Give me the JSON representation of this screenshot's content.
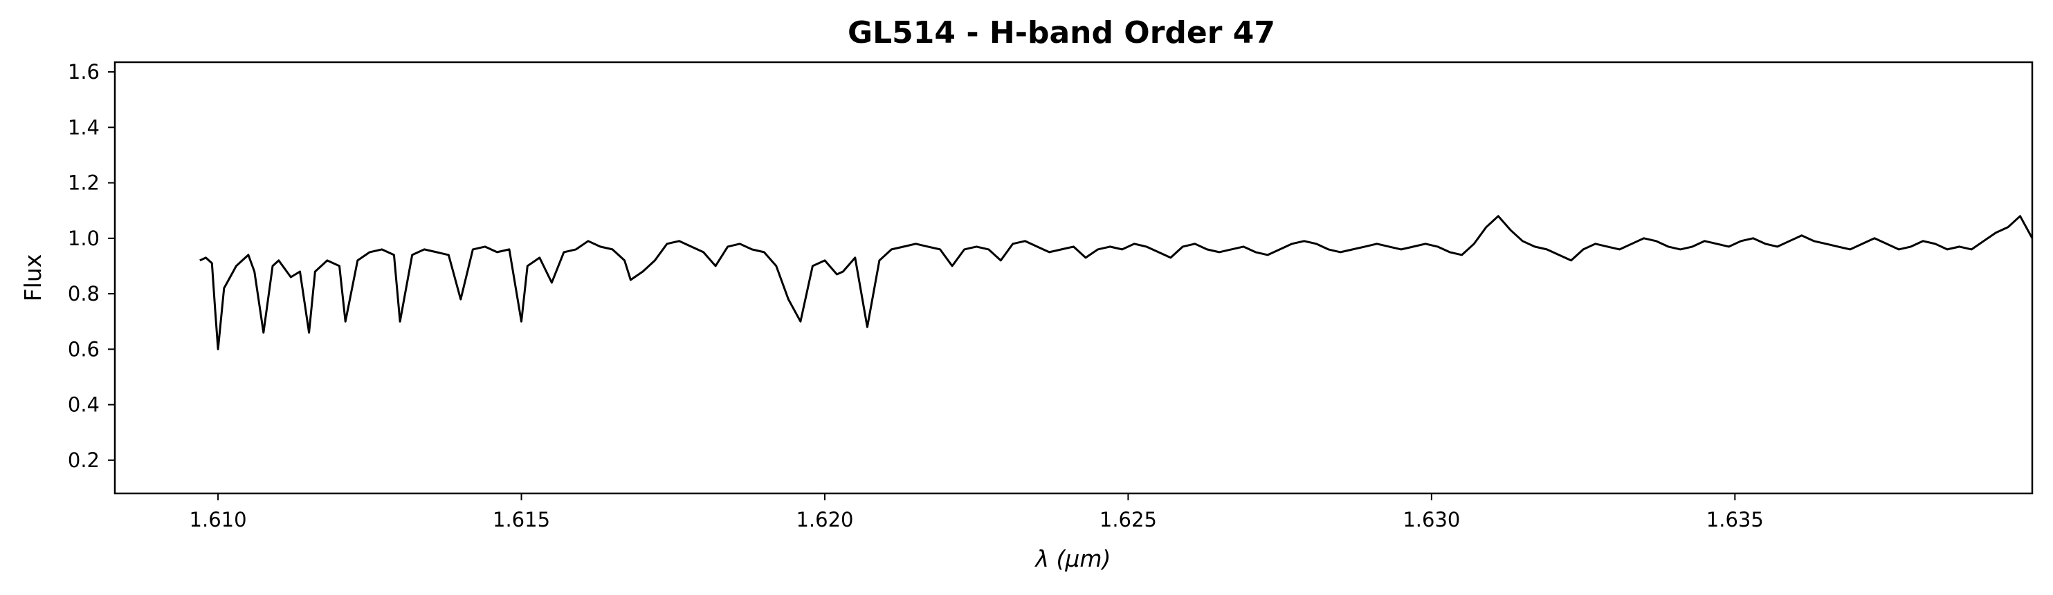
{
  "chart_data": {
    "type": "line",
    "title": "GL514 - H-band Order 47",
    "xlabel": "λ (μm)",
    "ylabel": "Flux",
    "xlim": [
      1.6083,
      1.6399
    ],
    "ylim": [
      0.08,
      1.635
    ],
    "xticks": [
      "1.610",
      "1.615",
      "1.620",
      "1.625",
      "1.630",
      "1.635",
      "1.640"
    ],
    "yticks": [
      "0.2",
      "0.4",
      "0.6",
      "0.8",
      "1.0",
      "1.2",
      "1.4",
      "1.6"
    ],
    "grid": false,
    "legend": "none",
    "series": [
      {
        "color": "#000000",
        "points": [
          [
            1.6097,
            0.92
          ],
          [
            1.6098,
            0.93
          ],
          [
            1.6099,
            0.91
          ],
          [
            1.60995,
            0.75
          ],
          [
            1.61,
            0.6
          ],
          [
            1.6101,
            0.82
          ],
          [
            1.6102,
            0.86
          ],
          [
            1.6103,
            0.9
          ],
          [
            1.6104,
            0.92
          ],
          [
            1.6105,
            0.94
          ],
          [
            1.6106,
            0.88
          ],
          [
            1.61075,
            0.66
          ],
          [
            1.6109,
            0.9
          ],
          [
            1.611,
            0.92
          ],
          [
            1.6112,
            0.86
          ],
          [
            1.61135,
            0.88
          ],
          [
            1.6115,
            0.66
          ],
          [
            1.6116,
            0.88
          ],
          [
            1.6118,
            0.92
          ],
          [
            1.612,
            0.9
          ],
          [
            1.6121,
            0.7
          ],
          [
            1.6123,
            0.92
          ],
          [
            1.6125,
            0.95
          ],
          [
            1.6127,
            0.96
          ],
          [
            1.6129,
            0.94
          ],
          [
            1.613,
            0.7
          ],
          [
            1.6132,
            0.94
          ],
          [
            1.6134,
            0.96
          ],
          [
            1.6136,
            0.95
          ],
          [
            1.6138,
            0.94
          ],
          [
            1.614,
            0.78
          ],
          [
            1.6142,
            0.96
          ],
          [
            1.6144,
            0.97
          ],
          [
            1.6146,
            0.95
          ],
          [
            1.6148,
            0.96
          ],
          [
            1.615,
            0.7
          ],
          [
            1.6151,
            0.9
          ],
          [
            1.6153,
            0.93
          ],
          [
            1.6155,
            0.84
          ],
          [
            1.6157,
            0.95
          ],
          [
            1.6159,
            0.96
          ],
          [
            1.6161,
            0.99
          ],
          [
            1.6163,
            0.97
          ],
          [
            1.6165,
            0.96
          ],
          [
            1.6167,
            0.92
          ],
          [
            1.6168,
            0.85
          ],
          [
            1.617,
            0.88
          ],
          [
            1.6172,
            0.92
          ],
          [
            1.6174,
            0.98
          ],
          [
            1.6176,
            0.99
          ],
          [
            1.6178,
            0.97
          ],
          [
            1.618,
            0.95
          ],
          [
            1.6182,
            0.9
          ],
          [
            1.6184,
            0.97
          ],
          [
            1.6186,
            0.98
          ],
          [
            1.6188,
            0.96
          ],
          [
            1.619,
            0.95
          ],
          [
            1.6192,
            0.9
          ],
          [
            1.6194,
            0.78
          ],
          [
            1.6196,
            0.7
          ],
          [
            1.6198,
            0.9
          ],
          [
            1.62,
            0.92
          ],
          [
            1.6202,
            0.87
          ],
          [
            1.6203,
            0.88
          ],
          [
            1.6205,
            0.93
          ],
          [
            1.6207,
            0.68
          ],
          [
            1.6209,
            0.92
          ],
          [
            1.6211,
            0.96
          ],
          [
            1.6213,
            0.97
          ],
          [
            1.6215,
            0.98
          ],
          [
            1.6217,
            0.97
          ],
          [
            1.6219,
            0.96
          ],
          [
            1.6221,
            0.9
          ],
          [
            1.6223,
            0.96
          ],
          [
            1.6225,
            0.97
          ],
          [
            1.6227,
            0.96
          ],
          [
            1.6229,
            0.92
          ],
          [
            1.6231,
            0.98
          ],
          [
            1.6233,
            0.99
          ],
          [
            1.6235,
            0.97
          ],
          [
            1.6237,
            0.95
          ],
          [
            1.6239,
            0.96
          ],
          [
            1.6241,
            0.97
          ],
          [
            1.6243,
            0.93
          ],
          [
            1.6245,
            0.96
          ],
          [
            1.6247,
            0.97
          ],
          [
            1.6249,
            0.96
          ],
          [
            1.6251,
            0.98
          ],
          [
            1.6253,
            0.97
          ],
          [
            1.6255,
            0.95
          ],
          [
            1.6257,
            0.93
          ],
          [
            1.6259,
            0.97
          ],
          [
            1.6261,
            0.98
          ],
          [
            1.6263,
            0.96
          ],
          [
            1.6265,
            0.95
          ],
          [
            1.6267,
            0.96
          ],
          [
            1.6269,
            0.97
          ],
          [
            1.6271,
            0.95
          ],
          [
            1.6273,
            0.94
          ],
          [
            1.6275,
            0.96
          ],
          [
            1.6277,
            0.98
          ],
          [
            1.6279,
            0.99
          ],
          [
            1.6281,
            0.98
          ],
          [
            1.6283,
            0.96
          ],
          [
            1.6285,
            0.95
          ],
          [
            1.6287,
            0.96
          ],
          [
            1.6289,
            0.97
          ],
          [
            1.6291,
            0.98
          ],
          [
            1.6293,
            0.97
          ],
          [
            1.6295,
            0.96
          ],
          [
            1.6297,
            0.97
          ],
          [
            1.6299,
            0.98
          ],
          [
            1.6301,
            0.97
          ],
          [
            1.6303,
            0.95
          ],
          [
            1.6305,
            0.94
          ],
          [
            1.6307,
            0.98
          ],
          [
            1.6309,
            1.04
          ],
          [
            1.6311,
            1.08
          ],
          [
            1.6313,
            1.03
          ],
          [
            1.6315,
            0.99
          ],
          [
            1.6317,
            0.97
          ],
          [
            1.6319,
            0.96
          ],
          [
            1.6321,
            0.94
          ],
          [
            1.6323,
            0.92
          ],
          [
            1.6325,
            0.96
          ],
          [
            1.6327,
            0.98
          ],
          [
            1.6329,
            0.97
          ],
          [
            1.6331,
            0.96
          ],
          [
            1.6333,
            0.98
          ],
          [
            1.6335,
            1.0
          ],
          [
            1.6337,
            0.99
          ],
          [
            1.6339,
            0.97
          ],
          [
            1.6341,
            0.96
          ],
          [
            1.6343,
            0.97
          ],
          [
            1.6345,
            0.99
          ],
          [
            1.6347,
            0.98
          ],
          [
            1.6349,
            0.97
          ],
          [
            1.6351,
            0.99
          ],
          [
            1.6353,
            1.0
          ],
          [
            1.6355,
            0.98
          ],
          [
            1.6357,
            0.97
          ],
          [
            1.6359,
            0.99
          ],
          [
            1.6361,
            1.01
          ],
          [
            1.6363,
            0.99
          ],
          [
            1.6365,
            0.98
          ],
          [
            1.6367,
            0.97
          ],
          [
            1.6369,
            0.96
          ],
          [
            1.6371,
            0.98
          ],
          [
            1.6373,
            1.0
          ],
          [
            1.6375,
            0.98
          ],
          [
            1.6377,
            0.96
          ],
          [
            1.6379,
            0.97
          ],
          [
            1.6381,
            0.99
          ],
          [
            1.6383,
            0.98
          ],
          [
            1.6385,
            0.96
          ],
          [
            1.6387,
            0.97
          ],
          [
            1.6389,
            0.96
          ],
          [
            1.6391,
            0.99
          ],
          [
            1.6393,
            1.02
          ],
          [
            1.6395,
            1.04
          ],
          [
            1.6397,
            1.08
          ],
          [
            1.6399,
            1.0
          ]
        ]
      }
    ]
  }
}
